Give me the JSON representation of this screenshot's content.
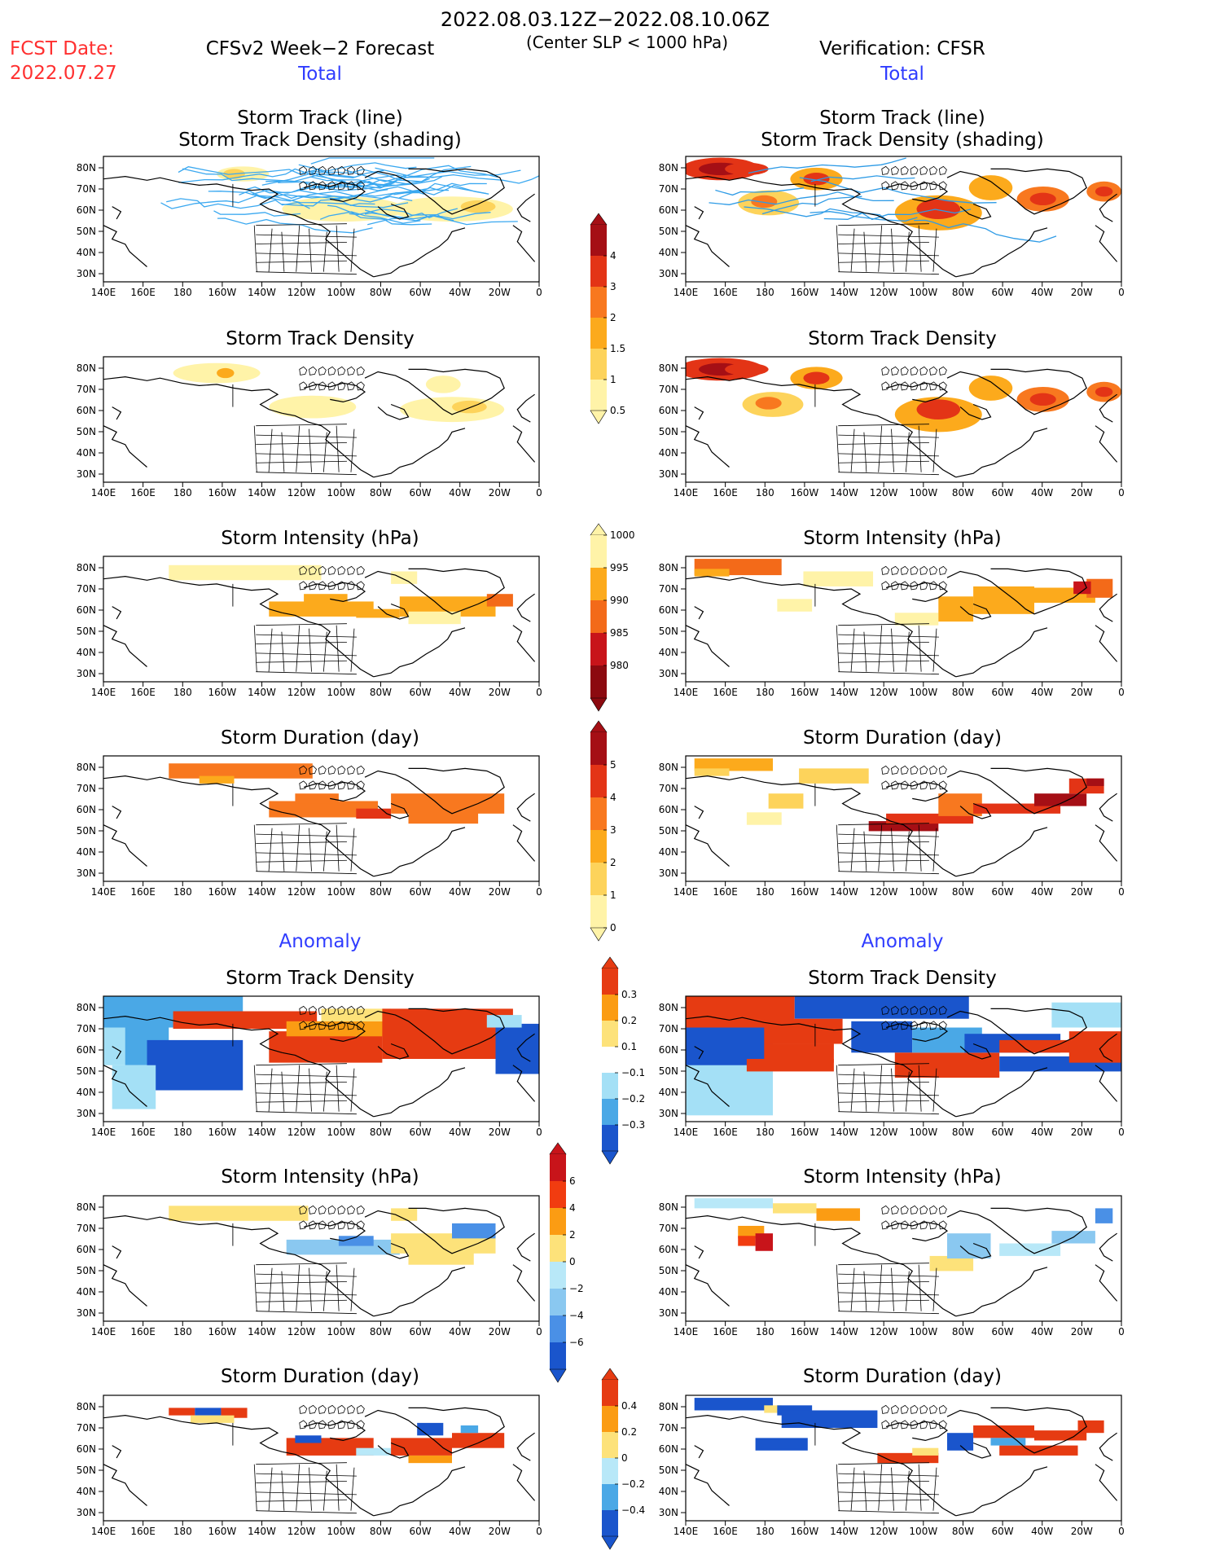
{
  "header": {
    "date_range": "2022.08.03.12Z−2022.08.10.06Z",
    "subtitle": "(Center SLP < 1000 hPa)",
    "fcst_label": "FCST Date:",
    "fcst_date": "2022.07.27",
    "left_title": "CFSv2 Week−2 Forecast",
    "right_title": "Verification: CFSR"
  },
  "sections": {
    "total_label": "Total",
    "anomaly_label": "Anomaly"
  },
  "panel_titles": {
    "track_line": "Storm Track (line)",
    "track_density_shading": "Storm Track Density (shading)",
    "track_density": "Storm Track Density",
    "intensity": "Storm Intensity (hPa)",
    "duration": "Storm Duration (day)"
  },
  "axes": {
    "lat_labels": [
      "80N",
      "70N",
      "60N",
      "50N",
      "40N",
      "30N"
    ],
    "lon_labels": [
      "140E",
      "160E",
      "180",
      "160W",
      "140W",
      "120W",
      "100W",
      "80W",
      "60W",
      "40W",
      "20W",
      "0"
    ]
  },
  "colorbars": {
    "density": {
      "labels": [
        "4",
        "3",
        "2",
        "1.5",
        "1",
        "0.5"
      ],
      "colors": [
        "#a50f15",
        "#e33416",
        "#f8781f",
        "#fcaa1c",
        "#fdd35b",
        "#fff3a8"
      ]
    },
    "intensity": {
      "labels": [
        "1000",
        "995",
        "990",
        "985",
        "980"
      ],
      "colors": [
        "#fff3a8",
        "#fcaa1c",
        "#f36a19",
        "#c8141a",
        "#8c0a10"
      ]
    },
    "duration": {
      "labels": [
        "5",
        "4",
        "3",
        "2",
        "1",
        "0"
      ],
      "colors": [
        "#a50f15",
        "#e33416",
        "#f8781f",
        "#fcaa1c",
        "#fdd35b",
        "#fff3a8"
      ]
    },
    "anom_density": {
      "labels": [
        "0.3",
        "0.2",
        "0.1",
        "−0.1",
        "−0.2",
        "−0.3"
      ],
      "colors": [
        "#e63b12",
        "#fb9c13",
        "#fde27a",
        "#ffffff",
        "#a4e0f6",
        "#4aa8e6",
        "#1a55cc"
      ]
    },
    "anom_intensity": {
      "labels": [
        "6",
        "4",
        "2",
        "0",
        "−2",
        "−4",
        "−6"
      ],
      "colors": [
        "#c8141a",
        "#f13c10",
        "#fb9c13",
        "#fde27a",
        "#b8e8f8",
        "#8ac8f0",
        "#4a90e6",
        "#1a55cc"
      ]
    },
    "anom_duration": {
      "labels": [
        "0.4",
        "0.2",
        "0",
        "−0.2",
        "−0.4"
      ],
      "colors": [
        "#e63b12",
        "#fb9c13",
        "#fde27a",
        "#b8e8f8",
        "#4aa8e6",
        "#1a55cc"
      ]
    }
  },
  "colors": {
    "land_line": "#000000",
    "track_line": "#2e9be6",
    "track_line_fcst": "#3aa8f0"
  }
}
